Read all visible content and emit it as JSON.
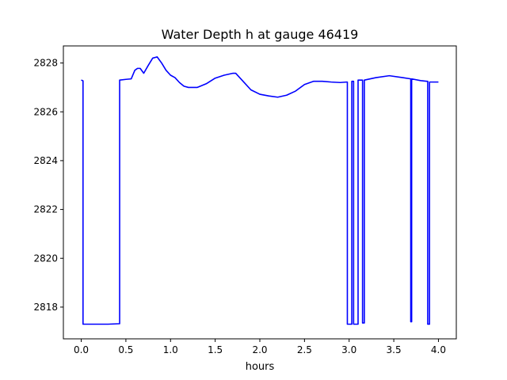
{
  "chart_data": {
    "type": "line",
    "title": "Water Depth h at gauge 46419",
    "xlabel": "hours",
    "ylabel": "",
    "xlim": [
      -0.2,
      4.2
    ],
    "ylim": [
      2816.7,
      2828.7
    ],
    "x_ticks": [
      0.0,
      0.5,
      1.0,
      1.5,
      2.0,
      2.5,
      3.0,
      3.5,
      4.0
    ],
    "x_tick_labels": [
      "0.0",
      "0.5",
      "1.0",
      "1.5",
      "2.0",
      "2.5",
      "3.0",
      "3.5",
      "4.0"
    ],
    "y_ticks": [
      2818,
      2820,
      2822,
      2824,
      2826,
      2828
    ],
    "y_tick_labels": [
      "2818",
      "2820",
      "2822",
      "2824",
      "2826",
      "2828"
    ],
    "grid": false,
    "series": [
      {
        "color": "#0000ff",
        "x": [
          0.0,
          0.02,
          0.02,
          0.1,
          0.2,
          0.3,
          0.43,
          0.43,
          0.5,
          0.56,
          0.6,
          0.63,
          0.66,
          0.7,
          0.75,
          0.8,
          0.85,
          0.9,
          0.95,
          1.0,
          1.05,
          1.1,
          1.15,
          1.2,
          1.3,
          1.4,
          1.5,
          1.6,
          1.7,
          1.73,
          1.8,
          1.9,
          2.0,
          2.1,
          2.2,
          2.3,
          2.4,
          2.5,
          2.6,
          2.7,
          2.8,
          2.9,
          2.97,
          2.98,
          2.98,
          3.03,
          3.03,
          3.05,
          3.05,
          3.1,
          3.1,
          3.11,
          3.15,
          3.15,
          3.17,
          3.17,
          3.3,
          3.45,
          3.6,
          3.69,
          3.69,
          3.7,
          3.7,
          3.8,
          3.87,
          3.88,
          3.88,
          3.9,
          3.9,
          4.0
        ],
        "y": [
          2827.3,
          2827.27,
          2817.3,
          2817.3,
          2817.3,
          2817.3,
          2817.32,
          2827.3,
          2827.33,
          2827.35,
          2827.7,
          2827.78,
          2827.78,
          2827.58,
          2827.9,
          2828.2,
          2828.25,
          2828.0,
          2827.7,
          2827.5,
          2827.4,
          2827.2,
          2827.05,
          2827.0,
          2827.0,
          2827.15,
          2827.38,
          2827.5,
          2827.58,
          2827.58,
          2827.3,
          2826.9,
          2826.72,
          2826.65,
          2826.6,
          2826.68,
          2826.85,
          2827.12,
          2827.25,
          2827.25,
          2827.22,
          2827.2,
          2827.22,
          2827.22,
          2817.3,
          2817.3,
          2827.25,
          2827.25,
          2817.3,
          2817.3,
          2827.3,
          2827.3,
          2827.3,
          2817.35,
          2817.35,
          2827.3,
          2827.4,
          2827.48,
          2827.4,
          2827.35,
          2817.4,
          2817.4,
          2827.35,
          2827.28,
          2827.25,
          2827.25,
          2817.3,
          2817.3,
          2827.22,
          2827.22
        ]
      }
    ]
  }
}
